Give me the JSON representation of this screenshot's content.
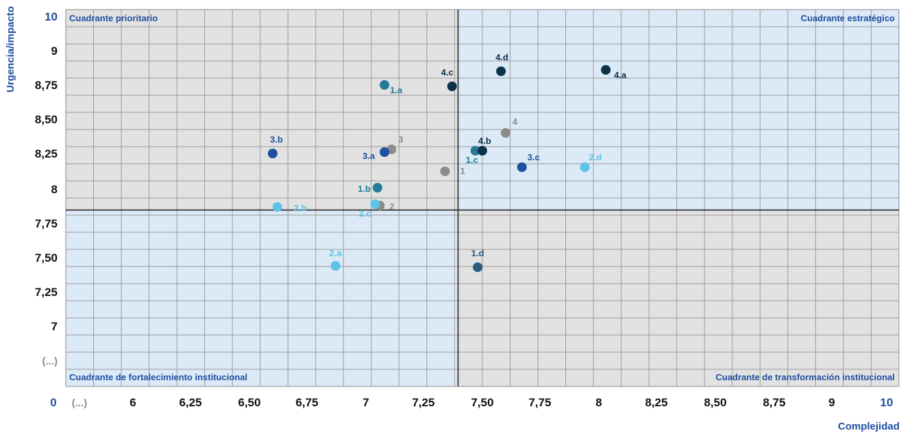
{
  "chart_data": {
    "type": "scatter",
    "xlabel": "Complejidad",
    "ylabel": "Urgencia/impacto",
    "x_ticks": [
      "0",
      "(...)",
      "6",
      "6,25",
      "6,50",
      "6,75",
      "7",
      "7,25",
      "7,50",
      "7,75",
      "8",
      "8,25",
      "8,50",
      "8,75",
      "9",
      "10"
    ],
    "y_ticks": [
      "10",
      "9",
      "8,75",
      "8,50",
      "8,25",
      "8",
      "7,75",
      "7,50",
      "7,25",
      "7",
      "(...)"
    ],
    "xlim": [
      5.75,
      10
    ],
    "ylim": [
      6.75,
      9.25
    ],
    "grid": true,
    "threshold_x": 7.42,
    "threshold_y": 7.92,
    "quadrants": {
      "top_left": "Cuadrante prioritario",
      "top_right": "Cuadrante estratégico",
      "bottom_left": "Cuadrante de fortalecimiento institucional",
      "bottom_right": "Cuadrante de transformación institucional"
    },
    "colors": {
      "blue": "#1f4fa0",
      "teal": "#257a99",
      "light_blue": "#5bc4e8",
      "dark_navy": "#0d3349",
      "gray": "#8c8c8c",
      "slate": "#2c5b7e",
      "quad_gray": "#e2e2e2",
      "quad_blue": "#dce9f6"
    },
    "points": [
      {
        "label": "1",
        "x": 7.34,
        "y": 8.13,
        "color": "gray"
      },
      {
        "label": "2",
        "x": 7.06,
        "y": 7.88,
        "color": "gray"
      },
      {
        "label": "3",
        "x": 7.11,
        "y": 8.29,
        "color": "gray"
      },
      {
        "label": "4",
        "x": 7.6,
        "y": 8.41,
        "color": "gray"
      },
      {
        "label": "1.a",
        "x": 7.08,
        "y": 8.76,
        "color": "teal"
      },
      {
        "label": "1.b",
        "x": 7.05,
        "y": 8.01,
        "color": "teal"
      },
      {
        "label": "1.c",
        "x": 7.47,
        "y": 8.28,
        "color": "teal"
      },
      {
        "label": "1.d",
        "x": 7.48,
        "y": 7.43,
        "color": "slate"
      },
      {
        "label": "2.a",
        "x": 6.87,
        "y": 7.44,
        "color": "light_blue"
      },
      {
        "label": "2.b",
        "x": 6.62,
        "y": 7.87,
        "color": "light_blue"
      },
      {
        "label": "2.c",
        "x": 7.04,
        "y": 7.89,
        "color": "light_blue"
      },
      {
        "label": "2.d",
        "x": 7.94,
        "y": 8.16,
        "color": "light_blue"
      },
      {
        "label": "3.a",
        "x": 7.08,
        "y": 8.27,
        "color": "blue"
      },
      {
        "label": "3.b",
        "x": 6.6,
        "y": 8.26,
        "color": "blue"
      },
      {
        "label": "3.c",
        "x": 7.67,
        "y": 8.16,
        "color": "blue"
      },
      {
        "label": "4.a",
        "x": 8.03,
        "y": 8.87,
        "color": "dark_navy"
      },
      {
        "label": "4.b",
        "x": 7.5,
        "y": 8.28,
        "color": "dark_navy"
      },
      {
        "label": "4.c",
        "x": 7.37,
        "y": 8.75,
        "color": "dark_navy"
      },
      {
        "label": "4.d",
        "x": 7.58,
        "y": 8.86,
        "color": "dark_navy"
      }
    ]
  }
}
